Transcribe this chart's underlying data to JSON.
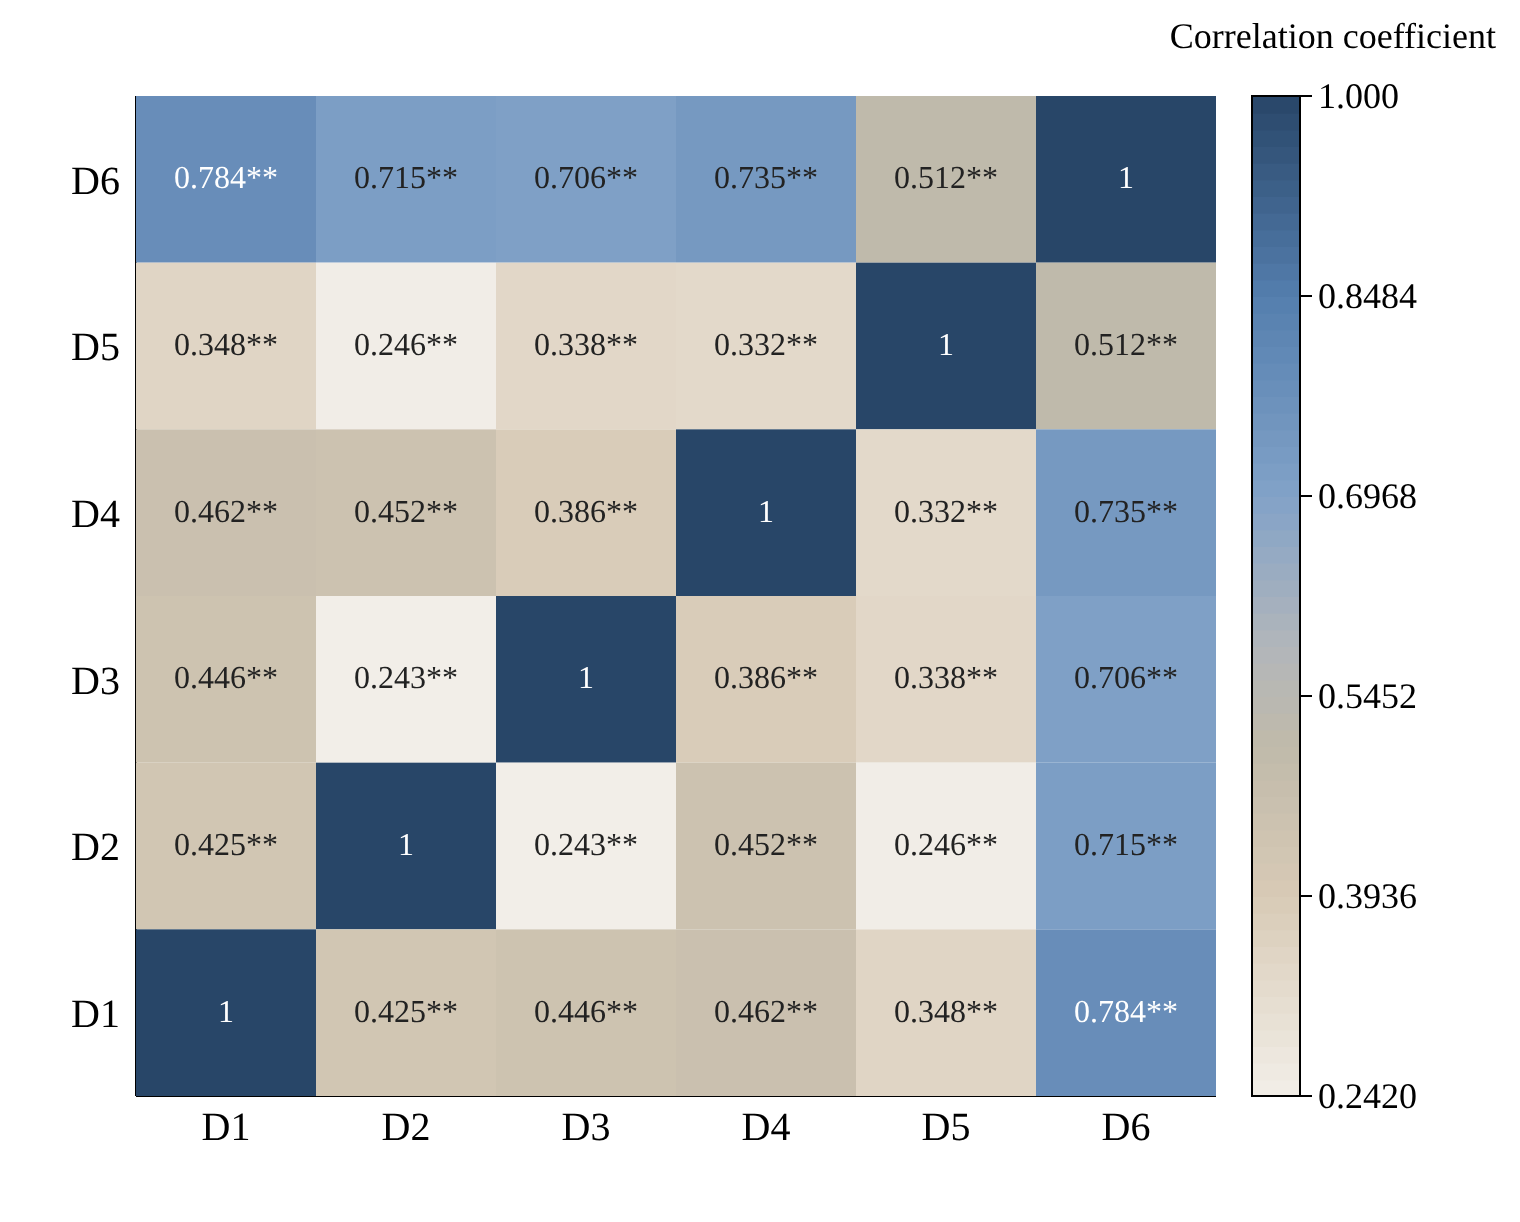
{
  "chart_data": {
    "type": "heatmap",
    "clabel": "Correlation coefficient",
    "categories": [
      "D1",
      "D2",
      "D3",
      "D4",
      "D5",
      "D6"
    ],
    "y_categories": [
      "D6",
      "D5",
      "D4",
      "D3",
      "D2",
      "D1"
    ],
    "cells": [
      [
        0.784,
        0.715,
        0.706,
        0.735,
        0.512,
        1
      ],
      [
        0.348,
        0.246,
        0.338,
        0.332,
        1,
        0.512
      ],
      [
        0.462,
        0.452,
        0.386,
        1,
        0.332,
        0.735
      ],
      [
        0.446,
        0.243,
        1,
        0.386,
        0.338,
        0.706
      ],
      [
        0.425,
        1,
        0.243,
        0.452,
        0.246,
        0.715
      ],
      [
        1,
        0.425,
        0.446,
        0.462,
        0.348,
        0.784
      ]
    ],
    "cell_labels": [
      [
        "0.784**",
        "0.715**",
        "0.706**",
        "0.735**",
        "0.512**",
        "1"
      ],
      [
        "0.348**",
        "0.246**",
        "0.338**",
        "0.332**",
        "1",
        "0.512**"
      ],
      [
        "0.462**",
        "0.452**",
        "0.386**",
        "1",
        "0.332**",
        "0.735**"
      ],
      [
        "0.446**",
        "0.243**",
        "1",
        "0.386**",
        "0.338**",
        "0.706**"
      ],
      [
        "0.425**",
        "1",
        "0.243**",
        "0.452**",
        "0.246**",
        "0.715**"
      ],
      [
        "1",
        "0.425**",
        "0.446**",
        "0.462**",
        "0.348**",
        "0.784**"
      ]
    ],
    "clim": [
      0.242,
      1.0
    ],
    "cticks": [
      {
        "value": 0.242,
        "label": "0.2420"
      },
      0.3936,
      0.5452,
      0.6968,
      0.8484,
      {
        "value": 1.0,
        "label": "1.000"
      }
    ]
  }
}
